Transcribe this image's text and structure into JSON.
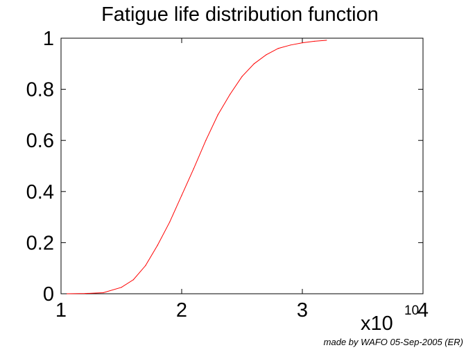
{
  "chart_data": {
    "type": "line",
    "title": "Fatigue life distribution function",
    "xlabel": "",
    "ylabel": "",
    "xlim": [
      1,
      4
    ],
    "ylim": [
      0,
      1
    ],
    "x_ticks": [
      "1",
      "2",
      "3",
      "4"
    ],
    "y_ticks": [
      "0",
      "0.2",
      "0.4",
      "0.6",
      "0.8",
      "1"
    ],
    "x_exponent": {
      "base": "x10",
      "power": "10"
    },
    "grid": false,
    "series": [
      {
        "color": "#ff0000",
        "x": [
          1.05,
          1.2,
          1.35,
          1.5,
          1.6,
          1.7,
          1.8,
          1.9,
          2.0,
          2.1,
          2.2,
          2.3,
          2.4,
          2.5,
          2.6,
          2.7,
          2.8,
          2.9,
          3.0,
          3.1,
          3.2
        ],
        "y": [
          0.0,
          0.001,
          0.004,
          0.025,
          0.055,
          0.11,
          0.19,
          0.28,
          0.385,
          0.49,
          0.6,
          0.7,
          0.78,
          0.85,
          0.9,
          0.935,
          0.96,
          0.973,
          0.982,
          0.988,
          0.992
        ]
      }
    ]
  },
  "footer": {
    "credit": "made by WAFO 05-Sep-2005 (ER)"
  }
}
